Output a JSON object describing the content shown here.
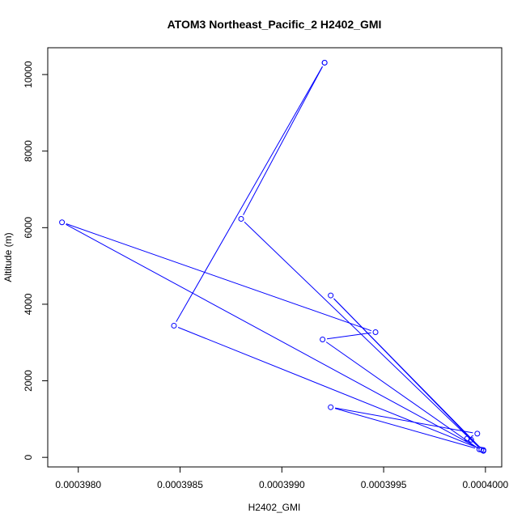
{
  "chart_data": {
    "type": "line",
    "title": "ATOM3 Northeast_Pacific_2 H2402_GMI",
    "xlabel": "H2402_GMI",
    "ylabel": "Altitude (m)",
    "xlim": [
      0.00039785,
      0.00040008
    ],
    "ylim": [
      -250,
      10700
    ],
    "x_ticks": [
      {
        "value": 0.000398,
        "label": "0.0003980"
      },
      {
        "value": 0.0003985,
        "label": "0.0003985"
      },
      {
        "value": 0.000399,
        "label": "0.0003990"
      },
      {
        "value": 0.0003995,
        "label": "0.0003995"
      },
      {
        "value": 0.0004,
        "label": "0.0004000"
      }
    ],
    "y_ticks": [
      {
        "value": 0,
        "label": "0"
      },
      {
        "value": 2000,
        "label": "2000"
      },
      {
        "value": 4000,
        "label": "4000"
      },
      {
        "value": 6000,
        "label": "6000"
      },
      {
        "value": 8000,
        "label": "8000"
      },
      {
        "value": 10000,
        "label": "10000"
      }
    ],
    "grid": false,
    "series_color": "#0000ff",
    "points": [
      {
        "x": 0.00039921,
        "y": 10310
      },
      {
        "x": 0.0003988,
        "y": 6230
      },
      {
        "x": 0.00039998,
        "y": 200
      },
      {
        "x": 0.00039924,
        "y": 4230
      },
      {
        "x": 0.00039999,
        "y": 170
      },
      {
        "x": 0.00039792,
        "y": 6140
      },
      {
        "x": 0.00039946,
        "y": 3270
      },
      {
        "x": 0.0003992,
        "y": 3080
      },
      {
        "x": 0.00039997,
        "y": 210
      },
      {
        "x": 0.00039924,
        "y": 1310
      },
      {
        "x": 0.00039996,
        "y": 620
      },
      {
        "x": 0.00039991,
        "y": 490
      },
      {
        "x": 0.00039993,
        "y": 460
      },
      {
        "x": 0.00039999,
        "y": 190
      },
      {
        "x": 0.00039847,
        "y": 3440
      },
      {
        "x": 0.00039921,
        "y": 10310
      }
    ]
  }
}
